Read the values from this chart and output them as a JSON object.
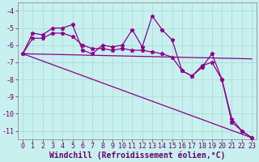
{
  "xlabel": "Windchill (Refroidissement éolien,°C)",
  "background_color": "#c8f0ee",
  "line_color": "#8b008b",
  "grid_color": "#a8d8d8",
  "xlim": [
    -0.5,
    23.5
  ],
  "ylim": [
    -11.5,
    -3.5
  ],
  "yticks": [
    -4,
    -5,
    -6,
    -7,
    -8,
    -9,
    -10,
    -11
  ],
  "xticks": [
    0,
    1,
    2,
    3,
    4,
    5,
    6,
    7,
    8,
    9,
    10,
    11,
    12,
    13,
    14,
    15,
    16,
    17,
    18,
    19,
    20,
    21,
    22,
    23
  ],
  "series1_x": [
    0,
    1,
    2,
    3,
    4,
    5,
    6,
    7,
    8,
    9,
    10,
    11,
    12,
    13,
    14,
    15,
    16,
    17,
    18,
    19,
    20,
    21,
    22,
    23
  ],
  "series1_y": [
    -6.5,
    -5.3,
    -5.4,
    -5.0,
    -5.0,
    -4.8,
    -6.3,
    -6.5,
    -6.0,
    -6.1,
    -6.0,
    -5.1,
    -6.1,
    -4.3,
    -5.1,
    -5.7,
    -7.5,
    -7.8,
    -7.3,
    -6.5,
    -8.0,
    -10.3,
    -11.0,
    -11.4
  ],
  "series2_x": [
    0,
    1,
    2,
    3,
    4,
    5,
    6,
    7,
    8,
    9,
    10,
    11,
    12,
    13,
    14,
    15,
    16,
    17,
    18,
    19,
    20,
    21,
    22,
    23
  ],
  "series2_y": [
    -6.5,
    -5.6,
    -5.6,
    -5.3,
    -5.3,
    -5.5,
    -6.0,
    -6.2,
    -6.2,
    -6.3,
    -6.2,
    -6.3,
    -6.3,
    -6.4,
    -6.5,
    -6.7,
    -7.5,
    -7.8,
    -7.2,
    -7.0,
    -8.0,
    -10.5,
    -11.0,
    -11.4
  ],
  "trend1_x": [
    0,
    23
  ],
  "trend1_y": [
    -6.5,
    -6.8
  ],
  "trend2_x": [
    0,
    23
  ],
  "trend2_y": [
    -6.5,
    -11.4
  ],
  "font_color": "#6a006a",
  "tick_fontsize": 6.0,
  "label_fontsize": 7.0
}
